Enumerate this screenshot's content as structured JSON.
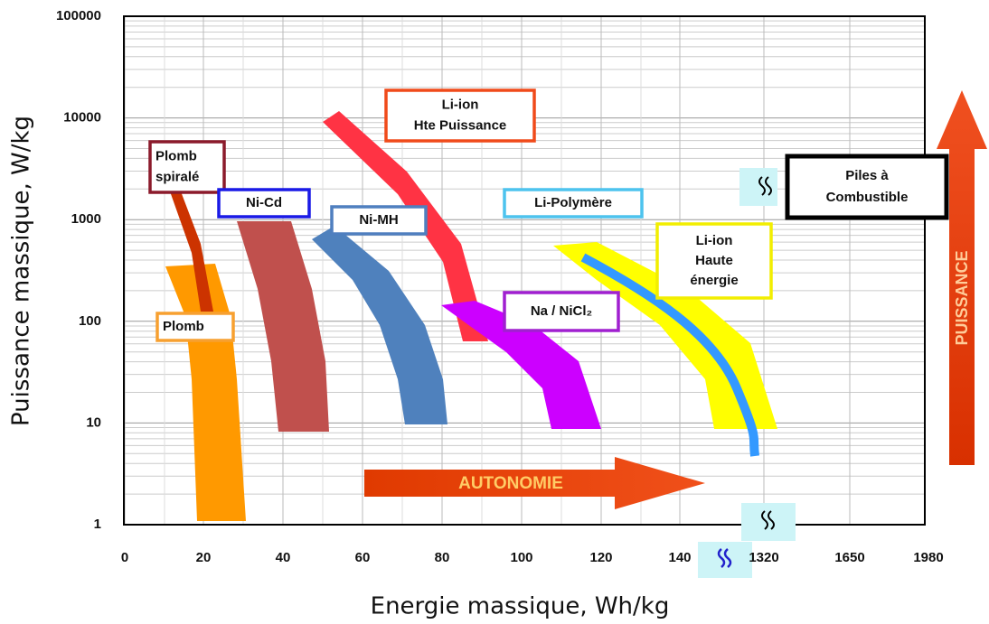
{
  "chart_data": {
    "type": "ragone",
    "x_label": "Energie massique, Wh/kg",
    "y_label": "Puissance massique, W/kg",
    "categories": [
      "0",
      "20",
      "40",
      "60",
      "80",
      "100",
      "120",
      "140",
      "1320",
      "1650",
      "1980"
    ],
    "ylim": [
      1,
      100000
    ],
    "yticks": [
      1,
      10,
      100,
      1000,
      10000,
      100000
    ],
    "log_y": true,
    "grid": true,
    "arrows": {
      "x": "AUTONOMIE",
      "y": "PUISSANCE"
    },
    "annotations": [
      {
        "lines": [
          "Plomb",
          "spiralé"
        ],
        "color": "#8b1a2b"
      },
      {
        "lines": [
          "Ni-Cd"
        ],
        "color": "#1a1ae6"
      },
      {
        "lines": [
          "Ni-MH"
        ],
        "color": "#4f7fbf"
      },
      {
        "lines": [
          "Li-ion",
          "Hte Puissance"
        ],
        "color": "#f04a1a"
      },
      {
        "lines": [
          "Li-Polymère"
        ],
        "color": "#4dc3ee"
      },
      {
        "lines": [
          "Na / NiCl₂"
        ],
        "color": "#a020d0"
      },
      {
        "lines": [
          "Li-ion",
          "Haute",
          "énergie"
        ],
        "color": "#f2ee00"
      },
      {
        "lines": [
          "Piles à",
          "Combustible"
        ],
        "color": "#000000"
      },
      {
        "lines": [
          "Plomb"
        ],
        "color": "#f7a030"
      }
    ]
  }
}
